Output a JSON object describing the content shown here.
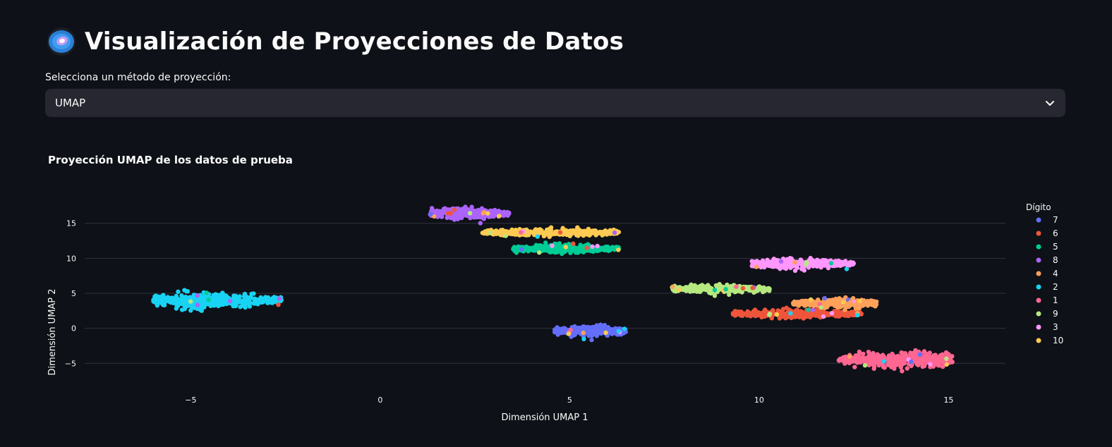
{
  "header": {
    "title": "Visualización de Proyecciones de Datos",
    "logo_icon": "galaxy-icon"
  },
  "selector": {
    "label": "Selecciona un método de proyección:",
    "value": "UMAP"
  },
  "chart_data": {
    "type": "scatter",
    "title": "Proyección UMAP de los datos de prueba",
    "xlabel": "Dimensión UMAP 1",
    "ylabel": "Dimensión UMAP 2",
    "xlim": [
      -7.8,
      16.5
    ],
    "ylim": [
      -9.5,
      19.5
    ],
    "xticks": [
      -5,
      0,
      5,
      10,
      15
    ],
    "yticks": [
      -5,
      0,
      5,
      10,
      15
    ],
    "xtick_labels": [
      "−5",
      "0",
      "5",
      "10",
      "15"
    ],
    "ytick_labels": [
      "−5",
      "0",
      "5",
      "10",
      "15"
    ],
    "grid": "horizontal",
    "legend": {
      "title": "Dígito",
      "position": "right"
    },
    "series": [
      {
        "name": "7",
        "color": "#636efa",
        "cx": 5.6,
        "cy": -0.4,
        "sx": 0.35,
        "sy": 0.45,
        "xmin": 4.6,
        "xmax": 6.5,
        "n": 260
      },
      {
        "name": "6",
        "color": "#ef553b",
        "cx": 11.0,
        "cy": 2.1,
        "sx": 0.9,
        "sy": 0.35,
        "xmin": 9.3,
        "xmax": 12.7,
        "n": 320
      },
      {
        "name": "5",
        "color": "#00cc96",
        "cx": 4.7,
        "cy": 11.4,
        "sx": 0.7,
        "sy": 0.35,
        "xmin": 3.5,
        "xmax": 6.3,
        "n": 320
      },
      {
        "name": "8",
        "color": "#ab63fa",
        "cx": 2.1,
        "cy": 16.4,
        "sx": 0.45,
        "sy": 0.45,
        "xmin": 1.3,
        "xmax": 3.4,
        "n": 300
      },
      {
        "name": "4",
        "color": "#ffa15a",
        "cx": 12.2,
        "cy": 3.6,
        "sx": 0.6,
        "sy": 0.35,
        "xmin": 10.9,
        "xmax": 13.1,
        "n": 300
      },
      {
        "name": "2",
        "color": "#19d3f3",
        "cx": -4.6,
        "cy": 4.0,
        "sx": 0.8,
        "sy": 0.6,
        "xmin": -6.0,
        "xmax": -2.6,
        "n": 420
      },
      {
        "name": "1",
        "color": "#ff6692",
        "cx": 13.9,
        "cy": -4.5,
        "sx": 0.75,
        "sy": 0.65,
        "xmin": 12.1,
        "xmax": 15.1,
        "n": 420
      },
      {
        "name": "9",
        "color": "#b6e880",
        "cx": 8.8,
        "cy": 5.6,
        "sx": 0.6,
        "sy": 0.35,
        "xmin": 7.7,
        "xmax": 10.3,
        "n": 260
      },
      {
        "name": "3",
        "color": "#ff97ff",
        "cx": 10.9,
        "cy": 9.2,
        "sx": 0.7,
        "sy": 0.4,
        "xmin": 9.8,
        "xmax": 12.5,
        "n": 300
      },
      {
        "name": "10",
        "color": "#fecb52",
        "cx": 4.5,
        "cy": 13.7,
        "sx": 1.0,
        "sy": 0.3,
        "xmin": 2.7,
        "xmax": 6.3,
        "n": 360
      }
    ]
  }
}
